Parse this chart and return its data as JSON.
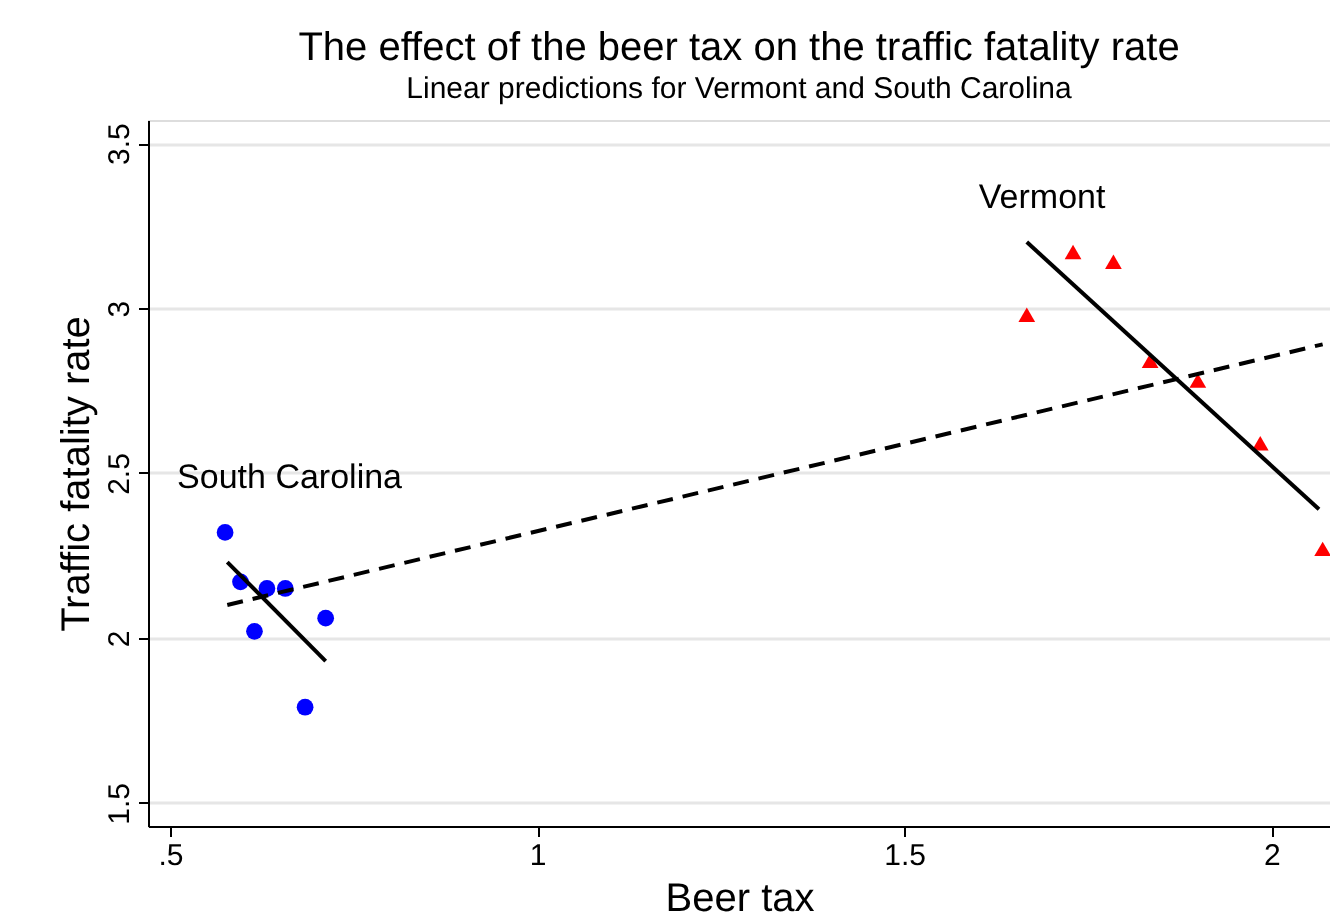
{
  "chart_data": {
    "type": "scatter",
    "title": "The effect of the beer tax on the traffic fatality rate",
    "subtitle": "Linear predictions for Vermont and South Carolina",
    "xlabel": "Beer tax",
    "ylabel": "Traffic fatality rate",
    "series": [
      {
        "color": "#0000ff",
        "marker": "circle",
        "x": [
          0.575,
          0.596,
          0.615,
          0.632,
          0.657,
          0.684,
          0.712
        ],
        "values": [
          2.32,
          2.17,
          2.02,
          2.15,
          2.15,
          1.79,
          2.06
        ]
      },
      {
        "color": "#ff0000",
        "marker": "triangle",
        "x": [
          1.667,
          1.73,
          1.785,
          1.835,
          1.9,
          1.985,
          2.07
        ],
        "values": [
          2.98,
          3.17,
          3.14,
          2.84,
          2.78,
          2.59,
          2.27
        ]
      },
      {
        "type": "line",
        "color": "#000000",
        "line_style": "solid",
        "x": [
          0.578,
          0.712
        ],
        "values": [
          2.23,
          1.93
        ]
      },
      {
        "type": "line",
        "color": "#000000",
        "line_style": "solid",
        "x": [
          1.667,
          2.065
        ],
        "values": [
          3.2,
          2.39
        ]
      },
      {
        "type": "line",
        "color": "#000000",
        "line_style": "dashed",
        "x": [
          0.578,
          2.07
        ],
        "values": [
          2.1,
          2.89
        ]
      }
    ],
    "annotations": [
      "South Carolina",
      "Vermont"
    ],
    "xlim": [
      0.47,
      2.08
    ],
    "xticks": [
      {
        "value": 0.5,
        "label": ".5"
      },
      1,
      1.5,
      2
    ],
    "ylim": [
      1.43,
      3.57
    ],
    "yticks": [
      1.5,
      2,
      2.5,
      3,
      3.5
    ],
    "grid": "y"
  }
}
